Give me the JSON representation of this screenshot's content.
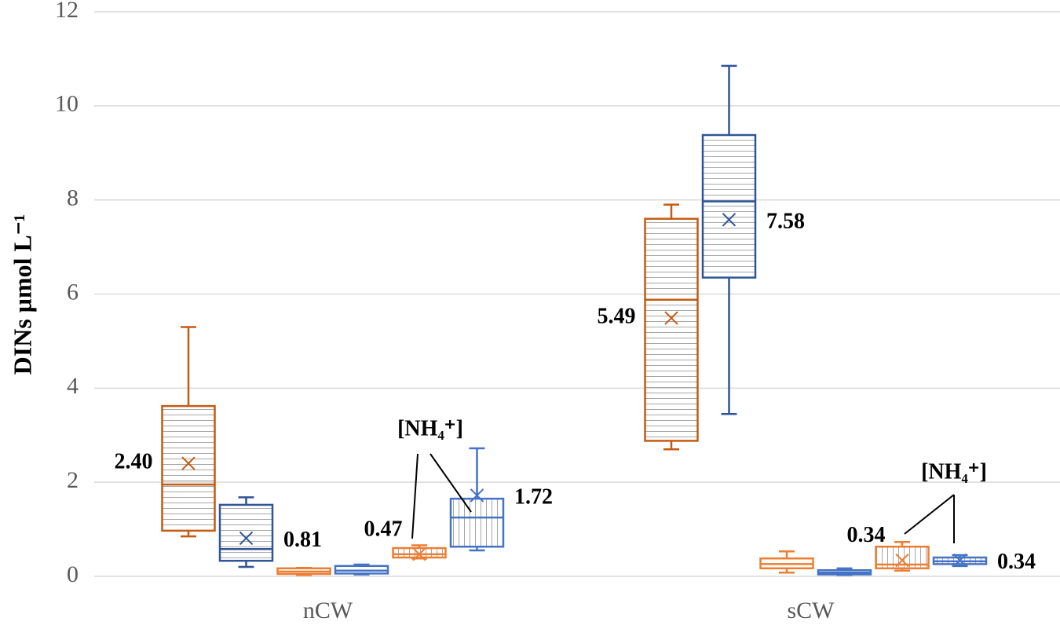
{
  "chart_data": {
    "type": "box",
    "y_label": "DINs μmol L⁻¹",
    "categories": [
      "nCW",
      "sCW"
    ],
    "ylim": [
      0,
      12
    ],
    "yticks": [
      0,
      2,
      4,
      6,
      8,
      10,
      12
    ],
    "grid": true,
    "series": [
      {
        "color": "#c55a11",
        "pattern": "horizontal",
        "boxes": [
          {
            "min": 0.85,
            "q1": 0.97,
            "median": 1.95,
            "q3": 3.62,
            "max": 5.3,
            "mean": 2.4,
            "mean_label": "2.40"
          },
          {
            "min": 2.7,
            "q1": 2.88,
            "median": 5.88,
            "q3": 7.6,
            "max": 7.9,
            "mean": 5.49,
            "mean_label": "5.49"
          }
        ]
      },
      {
        "color": "#2f5597",
        "pattern": "horizontal",
        "boxes": [
          {
            "min": 0.2,
            "q1": 0.33,
            "median": 0.58,
            "q3": 1.52,
            "max": 1.68,
            "mean": 0.81,
            "mean_label": "0.81"
          },
          {
            "min": 3.45,
            "q1": 6.35,
            "median": 7.97,
            "q3": 9.38,
            "max": 10.85,
            "mean": 7.58,
            "mean_label": "7.58"
          }
        ]
      },
      {
        "color": "#ed7d31",
        "pattern": "none",
        "boxes": [
          {
            "min": 0.03,
            "q1": 0.05,
            "median": 0.1,
            "q3": 0.17,
            "max": 0.18,
            "mean": null
          },
          {
            "min": 0.08,
            "q1": 0.17,
            "median": 0.26,
            "q3": 0.38,
            "max": 0.53,
            "mean": null
          }
        ]
      },
      {
        "color": "#4472c4",
        "pattern": "none",
        "boxes": [
          {
            "min": 0.04,
            "q1": 0.06,
            "median": 0.12,
            "q3": 0.22,
            "max": 0.25,
            "mean": null
          },
          {
            "min": 0.03,
            "q1": 0.04,
            "median": 0.08,
            "q3": 0.13,
            "max": 0.17,
            "mean": null
          }
        ]
      },
      {
        "color": "#ed7d31",
        "pattern": "vertical",
        "boxes": [
          {
            "min": 0.38,
            "q1": 0.4,
            "median": 0.47,
            "q3": 0.6,
            "max": 0.66,
            "mean": 0.47,
            "mean_label": "0.47"
          },
          {
            "min": 0.12,
            "q1": 0.17,
            "median": 0.25,
            "q3": 0.63,
            "max": 0.73,
            "mean": 0.34,
            "mean_label": "0.34"
          }
        ]
      },
      {
        "color": "#4472c4",
        "pattern": "vertical",
        "boxes": [
          {
            "min": 0.55,
            "q1": 0.63,
            "median": 1.25,
            "q3": 1.65,
            "max": 2.72,
            "mean": 1.72,
            "mean_label": "1.72"
          },
          {
            "min": 0.22,
            "q1": 0.26,
            "median": 0.32,
            "q3": 0.4,
            "max": 0.45,
            "mean": 0.34,
            "mean_label": "0.34"
          }
        ]
      }
    ],
    "annotations": [
      "[NH₄⁺]",
      "[NH₄⁺]"
    ]
  }
}
